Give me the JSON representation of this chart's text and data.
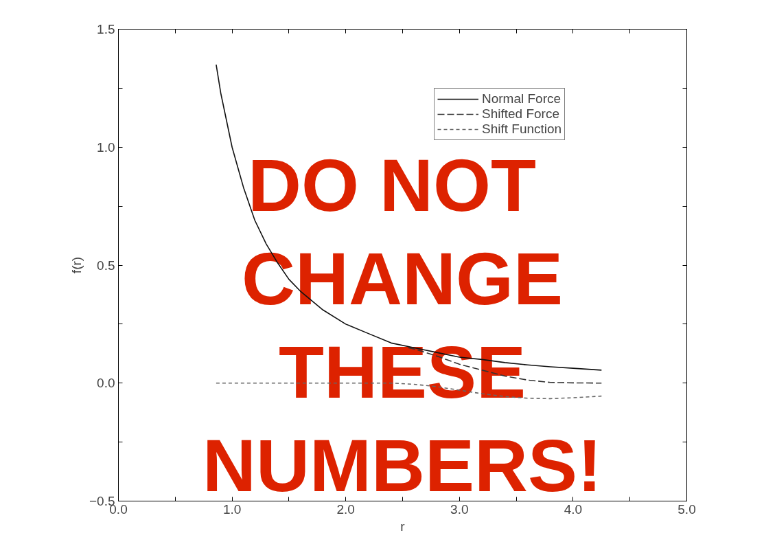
{
  "chart_data": {
    "type": "line",
    "xlabel": "r",
    "ylabel": "f(r)",
    "xlim": [
      0,
      5
    ],
    "ylim": [
      -0.5,
      1.5
    ],
    "xticks": [
      {
        "value": 0,
        "label": "0.0"
      },
      {
        "value": 0.5,
        "label": null
      },
      {
        "value": 1,
        "label": "1.0"
      },
      {
        "value": 1.5,
        "label": null
      },
      {
        "value": 2,
        "label": "2.0"
      },
      {
        "value": 2.5,
        "label": null
      },
      {
        "value": 3,
        "label": "3.0"
      },
      {
        "value": 3.5,
        "label": null
      },
      {
        "value": 4,
        "label": "4.0"
      },
      {
        "value": 4.5,
        "label": null
      },
      {
        "value": 5,
        "label": "5.0"
      }
    ],
    "yticks": [
      {
        "value": -0.5,
        "label": "−0.5"
      },
      {
        "value": -0.25,
        "label": null
      },
      {
        "value": 0,
        "label": "0.0"
      },
      {
        "value": 0.25,
        "label": null
      },
      {
        "value": 0.5,
        "label": "0.5"
      },
      {
        "value": 0.75,
        "label": null
      },
      {
        "value": 1,
        "label": "1.0"
      },
      {
        "value": 1.25,
        "label": null
      },
      {
        "value": 1.5,
        "label": "1.5"
      }
    ],
    "legend": "top right",
    "grid": false,
    "series": [
      {
        "name": "Normal Force",
        "color": "#111111",
        "line_style": "solid",
        "x": [
          0.86,
          0.9,
          1.0,
          1.1,
          1.2,
          1.3,
          1.4,
          1.5,
          1.6,
          1.8,
          2.0,
          2.2,
          2.4,
          2.6,
          2.8,
          3.0,
          3.2,
          3.4,
          3.6,
          3.8,
          4.0,
          4.25
        ],
        "values": [
          1.35,
          1.23,
          1.0,
          0.83,
          0.69,
          0.59,
          0.51,
          0.44,
          0.39,
          0.31,
          0.25,
          0.21,
          0.17,
          0.15,
          0.13,
          0.11,
          0.1,
          0.087,
          0.077,
          0.069,
          0.063,
          0.055
        ]
      },
      {
        "name": "Shifted Force",
        "color": "#333333",
        "line_style": "dashed",
        "x": [
          2.55,
          2.6,
          2.8,
          3.0,
          3.2,
          3.4,
          3.6,
          3.8,
          4.0,
          4.25
        ],
        "values": [
          0.15,
          0.145,
          0.115,
          0.08,
          0.055,
          0.03,
          0.013,
          0.003,
          0.001,
          0.0
        ]
      },
      {
        "name": "Shift Function",
        "color": "#666666",
        "line_style": "dotted",
        "x": [
          0.86,
          1.5,
          2.0,
          2.4,
          2.6,
          2.8,
          3.0,
          3.2,
          3.4,
          3.6,
          3.8,
          4.0,
          4.25
        ],
        "values": [
          0,
          0,
          0,
          0,
          -0.005,
          -0.015,
          -0.03,
          -0.045,
          -0.057,
          -0.064,
          -0.066,
          -0.062,
          -0.055
        ]
      }
    ],
    "annotations": [
      "DO  NOT CHANGE THESE NUMBERS!"
    ]
  }
}
